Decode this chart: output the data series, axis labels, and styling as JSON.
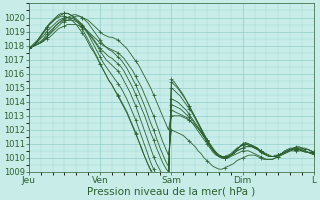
{
  "background_color": "#c8ece8",
  "plot_bg_color": "#c8ece8",
  "grid_color": "#8ecfca",
  "line_color": "#2d6030",
  "ylim": [
    1009,
    1021
  ],
  "yticks": [
    1009,
    1010,
    1011,
    1012,
    1013,
    1014,
    1015,
    1016,
    1017,
    1018,
    1019,
    1020
  ],
  "xtick_labels": [
    "Jeu",
    "Ven",
    "Sam",
    "Dim",
    "L"
  ],
  "xtick_positions": [
    0,
    24,
    48,
    72,
    96
  ],
  "xlabel": "Pression niveau de la mer( hPa )",
  "xlabel_fontsize": 7.5,
  "ytick_fontsize": 6,
  "xtick_fontsize": 6.5,
  "total_points": 97,
  "series": [
    [
      1017.8,
      1017.9,
      1018.0,
      1018.1,
      1018.2,
      1018.4,
      1018.6,
      1018.8,
      1019.0,
      1019.2,
      1019.4,
      1019.6,
      1019.7,
      1019.8,
      1019.9,
      1020.0,
      1020.1,
      1020.1,
      1020.0,
      1019.9,
      1019.8,
      1019.6,
      1019.4,
      1019.2,
      1019.0,
      1018.8,
      1018.7,
      1018.6,
      1018.6,
      1018.5,
      1018.4,
      1018.2,
      1018.0,
      1017.8,
      1017.5,
      1017.2,
      1016.9,
      1016.6,
      1016.2,
      1015.8,
      1015.4,
      1015.0,
      1014.5,
      1014.0,
      1013.5,
      1013.0,
      1012.5,
      1012.0,
      1013.0,
      1013.0,
      1013.0,
      1013.0,
      1012.9,
      1012.8,
      1012.7,
      1012.5,
      1012.3,
      1012.1,
      1011.8,
      1011.5,
      1011.2,
      1010.9,
      1010.6,
      1010.4,
      1010.2,
      1010.1,
      1010.0,
      1010.0,
      1010.1,
      1010.2,
      1010.3,
      1010.4,
      1010.5,
      1010.5,
      1010.5,
      1010.4,
      1010.3,
      1010.2,
      1010.1,
      1010.0,
      1009.9,
      1009.9,
      1009.9,
      1010.0,
      1010.1,
      1010.2,
      1010.3,
      1010.4,
      1010.5,
      1010.6,
      1010.6,
      1010.6,
      1010.6,
      1010.5,
      1010.4,
      1010.4,
      1010.3
    ],
    [
      1017.8,
      1017.9,
      1018.0,
      1018.1,
      1018.2,
      1018.3,
      1018.5,
      1018.6,
      1018.8,
      1019.0,
      1019.2,
      1019.3,
      1019.4,
      1019.5,
      1019.5,
      1019.5,
      1019.5,
      1019.4,
      1019.3,
      1019.2,
      1019.0,
      1018.8,
      1018.6,
      1018.4,
      1018.2,
      1018.0,
      1017.9,
      1017.8,
      1017.7,
      1017.6,
      1017.5,
      1017.3,
      1017.1,
      1016.8,
      1016.5,
      1016.2,
      1015.8,
      1015.4,
      1015.0,
      1014.5,
      1014.0,
      1013.5,
      1013.0,
      1012.4,
      1011.8,
      1011.2,
      1010.7,
      1010.2,
      1012.0,
      1011.9,
      1011.8,
      1011.7,
      1011.6,
      1011.4,
      1011.2,
      1011.0,
      1010.8,
      1010.5,
      1010.3,
      1010.0,
      1009.8,
      1009.6,
      1009.4,
      1009.3,
      1009.2,
      1009.2,
      1009.3,
      1009.4,
      1009.5,
      1009.6,
      1009.8,
      1009.9,
      1010.0,
      1010.1,
      1010.2,
      1010.2,
      1010.2,
      1010.1,
      1010.0,
      1009.9,
      1009.9,
      1009.9,
      1009.9,
      1010.0,
      1010.1,
      1010.2,
      1010.3,
      1010.4,
      1010.5,
      1010.5,
      1010.5,
      1010.5,
      1010.5,
      1010.4,
      1010.4,
      1010.4,
      1010.3
    ],
    [
      1017.8,
      1017.9,
      1018.0,
      1018.1,
      1018.2,
      1018.4,
      1018.6,
      1018.9,
      1019.1,
      1019.4,
      1019.6,
      1019.8,
      1019.9,
      1020.0,
      1020.1,
      1020.2,
      1020.2,
      1020.1,
      1020.0,
      1019.8,
      1019.6,
      1019.3,
      1019.0,
      1018.7,
      1018.4,
      1018.1,
      1017.9,
      1017.7,
      1017.6,
      1017.4,
      1017.2,
      1017.0,
      1016.7,
      1016.4,
      1016.0,
      1015.6,
      1015.2,
      1014.7,
      1014.2,
      1013.7,
      1013.1,
      1012.5,
      1012.0,
      1011.4,
      1010.8,
      1010.3,
      1009.8,
      1009.4,
      1013.4,
      1013.3,
      1013.2,
      1013.1,
      1013.0,
      1012.9,
      1012.7,
      1012.5,
      1012.2,
      1011.9,
      1011.6,
      1011.3,
      1011.0,
      1010.7,
      1010.4,
      1010.2,
      1010.1,
      1010.0,
      1010.0,
      1010.1,
      1010.2,
      1010.3,
      1010.5,
      1010.6,
      1010.7,
      1010.8,
      1010.8,
      1010.8,
      1010.7,
      1010.6,
      1010.5,
      1010.3,
      1010.2,
      1010.1,
      1010.1,
      1010.1,
      1010.2,
      1010.3,
      1010.4,
      1010.5,
      1010.6,
      1010.7,
      1010.7,
      1010.7,
      1010.7,
      1010.6,
      1010.6,
      1010.5,
      1010.4
    ],
    [
      1017.8,
      1017.9,
      1018.0,
      1018.2,
      1018.3,
      1018.5,
      1018.8,
      1019.0,
      1019.2,
      1019.4,
      1019.6,
      1019.7,
      1019.8,
      1019.8,
      1019.8,
      1019.8,
      1019.7,
      1019.6,
      1019.4,
      1019.2,
      1018.9,
      1018.7,
      1018.4,
      1018.1,
      1017.8,
      1017.6,
      1017.4,
      1017.2,
      1017.1,
      1016.9,
      1016.7,
      1016.5,
      1016.2,
      1015.8,
      1015.4,
      1015.0,
      1014.5,
      1014.0,
      1013.5,
      1013.0,
      1012.4,
      1011.8,
      1011.3,
      1010.7,
      1010.2,
      1009.7,
      1009.3,
      1009.0,
      1013.8,
      1013.7,
      1013.6,
      1013.5,
      1013.3,
      1013.1,
      1012.9,
      1012.7,
      1012.4,
      1012.1,
      1011.8,
      1011.5,
      1011.2,
      1010.9,
      1010.6,
      1010.4,
      1010.2,
      1010.1,
      1010.1,
      1010.1,
      1010.2,
      1010.3,
      1010.5,
      1010.6,
      1010.7,
      1010.8,
      1010.8,
      1010.8,
      1010.7,
      1010.6,
      1010.4,
      1010.3,
      1010.2,
      1010.1,
      1010.1,
      1010.1,
      1010.2,
      1010.3,
      1010.4,
      1010.5,
      1010.6,
      1010.7,
      1010.7,
      1010.7,
      1010.7,
      1010.6,
      1010.6,
      1010.5,
      1010.4
    ],
    [
      1017.8,
      1017.9,
      1018.1,
      1018.3,
      1018.5,
      1018.7,
      1019.0,
      1019.2,
      1019.4,
      1019.6,
      1019.8,
      1019.9,
      1020.0,
      1020.0,
      1020.0,
      1019.9,
      1019.8,
      1019.7,
      1019.5,
      1019.2,
      1018.9,
      1018.6,
      1018.3,
      1018.0,
      1017.6,
      1017.3,
      1017.0,
      1016.8,
      1016.6,
      1016.4,
      1016.2,
      1015.9,
      1015.5,
      1015.1,
      1014.7,
      1014.2,
      1013.7,
      1013.1,
      1012.5,
      1011.9,
      1011.3,
      1010.7,
      1010.1,
      1009.6,
      1009.2,
      1008.8,
      1008.5,
      1008.3,
      1014.2,
      1014.1,
      1014.0,
      1013.8,
      1013.6,
      1013.4,
      1013.1,
      1012.8,
      1012.5,
      1012.2,
      1011.9,
      1011.5,
      1011.2,
      1010.9,
      1010.6,
      1010.4,
      1010.2,
      1010.1,
      1010.1,
      1010.2,
      1010.3,
      1010.5,
      1010.7,
      1010.8,
      1010.9,
      1011.0,
      1010.9,
      1010.9,
      1010.8,
      1010.7,
      1010.5,
      1010.4,
      1010.3,
      1010.2,
      1010.1,
      1010.2,
      1010.2,
      1010.3,
      1010.5,
      1010.6,
      1010.7,
      1010.7,
      1010.8,
      1010.8,
      1010.7,
      1010.7,
      1010.6,
      1010.5,
      1010.4
    ],
    [
      1017.8,
      1017.9,
      1018.1,
      1018.3,
      1018.6,
      1018.9,
      1019.2,
      1019.5,
      1019.7,
      1019.9,
      1020.1,
      1020.2,
      1020.3,
      1020.3,
      1020.2,
      1020.1,
      1019.9,
      1019.7,
      1019.4,
      1019.1,
      1018.8,
      1018.4,
      1018.0,
      1017.6,
      1017.2,
      1016.8,
      1016.5,
      1016.2,
      1015.9,
      1015.6,
      1015.3,
      1015.0,
      1014.6,
      1014.2,
      1013.7,
      1013.2,
      1012.7,
      1012.1,
      1011.5,
      1010.9,
      1010.3,
      1009.7,
      1009.2,
      1008.8,
      1008.4,
      1008.1,
      1007.9,
      1007.8,
      1015.0,
      1014.8,
      1014.6,
      1014.4,
      1014.1,
      1013.8,
      1013.5,
      1013.2,
      1012.8,
      1012.4,
      1012.0,
      1011.6,
      1011.2,
      1010.8,
      1010.5,
      1010.3,
      1010.1,
      1010.0,
      1010.0,
      1010.1,
      1010.2,
      1010.4,
      1010.6,
      1010.8,
      1010.9,
      1011.0,
      1010.9,
      1010.9,
      1010.7,
      1010.6,
      1010.5,
      1010.3,
      1010.2,
      1010.1,
      1010.1,
      1010.1,
      1010.2,
      1010.3,
      1010.4,
      1010.5,
      1010.6,
      1010.6,
      1010.6,
      1010.6,
      1010.5,
      1010.5,
      1010.4,
      1010.4,
      1010.3
    ],
    [
      1017.8,
      1017.9,
      1018.1,
      1018.4,
      1018.7,
      1019.0,
      1019.3,
      1019.6,
      1019.8,
      1020.0,
      1020.2,
      1020.3,
      1020.3,
      1020.3,
      1020.2,
      1020.0,
      1019.8,
      1019.5,
      1019.2,
      1018.8,
      1018.4,
      1018.0,
      1017.6,
      1017.2,
      1016.7,
      1016.3,
      1015.9,
      1015.5,
      1015.2,
      1014.8,
      1014.5,
      1014.1,
      1013.7,
      1013.3,
      1012.8,
      1012.3,
      1011.8,
      1011.2,
      1010.7,
      1010.1,
      1009.6,
      1009.1,
      1008.7,
      1008.4,
      1008.1,
      1007.9,
      1007.8,
      1007.7,
      1015.4,
      1015.2,
      1015.0,
      1014.7,
      1014.4,
      1014.1,
      1013.7,
      1013.3,
      1012.9,
      1012.5,
      1012.1,
      1011.7,
      1011.3,
      1010.9,
      1010.6,
      1010.3,
      1010.1,
      1010.0,
      1010.0,
      1010.0,
      1010.2,
      1010.4,
      1010.6,
      1010.8,
      1011.0,
      1011.0,
      1011.0,
      1010.9,
      1010.8,
      1010.6,
      1010.5,
      1010.3,
      1010.2,
      1010.1,
      1010.1,
      1010.1,
      1010.2,
      1010.3,
      1010.4,
      1010.5,
      1010.6,
      1010.6,
      1010.6,
      1010.6,
      1010.5,
      1010.5,
      1010.4,
      1010.3,
      1010.3
    ],
    [
      1017.8,
      1018.0,
      1018.2,
      1018.4,
      1018.7,
      1019.0,
      1019.3,
      1019.5,
      1019.7,
      1019.9,
      1020.0,
      1020.1,
      1020.1,
      1020.0,
      1019.9,
      1019.7,
      1019.5,
      1019.2,
      1018.9,
      1018.6,
      1018.2,
      1017.8,
      1017.5,
      1017.1,
      1016.7,
      1016.3,
      1015.9,
      1015.5,
      1015.2,
      1014.8,
      1014.4,
      1014.0,
      1013.6,
      1013.2,
      1012.7,
      1012.2,
      1011.7,
      1011.2,
      1010.6,
      1010.1,
      1009.6,
      1009.2,
      1008.8,
      1008.5,
      1008.3,
      1008.1,
      1008.0,
      1007.9,
      1015.6,
      1015.4,
      1015.1,
      1014.8,
      1014.5,
      1014.1,
      1013.7,
      1013.3,
      1012.9,
      1012.5,
      1012.1,
      1011.7,
      1011.3,
      1011.0,
      1010.7,
      1010.4,
      1010.2,
      1010.1,
      1010.0,
      1010.1,
      1010.2,
      1010.4,
      1010.6,
      1010.8,
      1011.0,
      1011.1,
      1011.0,
      1010.9,
      1010.8,
      1010.7,
      1010.5,
      1010.4,
      1010.2,
      1010.1,
      1010.1,
      1010.1,
      1010.2,
      1010.3,
      1010.4,
      1010.5,
      1010.6,
      1010.6,
      1010.6,
      1010.6,
      1010.5,
      1010.5,
      1010.4,
      1010.3,
      1010.3
    ]
  ]
}
